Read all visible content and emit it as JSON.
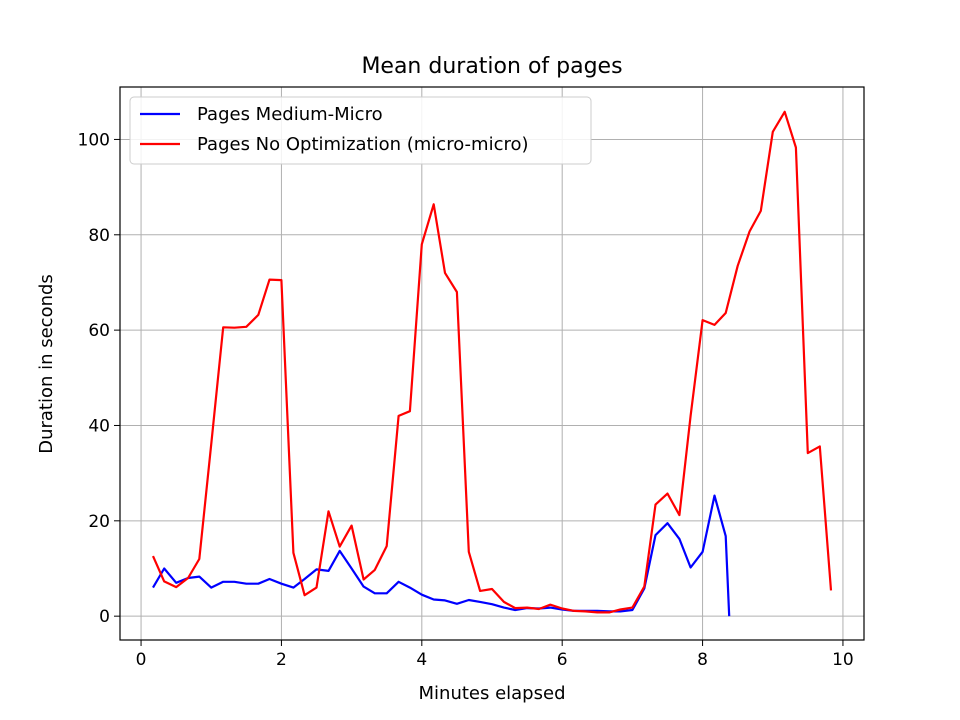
{
  "chart_data": {
    "type": "line",
    "title": "Mean duration of pages",
    "xlabel": "Minutes elapsed",
    "ylabel": "Duration in seconds",
    "xlim": [
      -0.3,
      10.3
    ],
    "ylim": [
      -5,
      111
    ],
    "xticks": [
      0,
      2,
      4,
      6,
      8,
      10
    ],
    "yticks": [
      0,
      20,
      40,
      60,
      80,
      100
    ],
    "grid": true,
    "legend_position": "top-left",
    "series": [
      {
        "name": "Pages Medium-Micro",
        "color": "#0000ff",
        "x": [
          0.17,
          0.33,
          0.5,
          0.67,
          0.83,
          1.0,
          1.17,
          1.33,
          1.5,
          1.67,
          1.83,
          2.0,
          2.17,
          2.33,
          2.5,
          2.67,
          2.83,
          3.0,
          3.17,
          3.33,
          3.5,
          3.67,
          3.83,
          4.0,
          4.17,
          4.33,
          4.5,
          4.67,
          4.83,
          5.0,
          5.17,
          5.33,
          5.5,
          5.67,
          5.83,
          6.0,
          6.17,
          6.33,
          6.5,
          6.67,
          6.83,
          7.0,
          7.17,
          7.33,
          7.5,
          7.67,
          7.83,
          8.0,
          8.17,
          8.33,
          8.38
        ],
        "y": [
          6,
          10,
          7,
          8,
          8.3,
          6,
          7.2,
          7.2,
          6.8,
          6.8,
          7.8,
          6.8,
          6,
          7.8,
          9.8,
          9.5,
          13.7,
          10,
          6.2,
          4.8,
          4.8,
          7.2,
          6,
          4.5,
          3.5,
          3.3,
          2.6,
          3.4,
          3,
          2.5,
          1.8,
          1.3,
          1.7,
          1.6,
          1.8,
          1.4,
          1.1,
          1.1,
          1.1,
          1,
          1,
          1.3,
          5.8,
          17,
          19.5,
          16.2,
          10.2,
          13.5,
          25.3,
          16.8,
          0
        ]
      },
      {
        "name": "Pages No Optimization (micro-micro)",
        "color": "#ff0000",
        "x": [
          0.17,
          0.33,
          0.5,
          0.67,
          0.83,
          1.0,
          1.17,
          1.33,
          1.5,
          1.67,
          1.83,
          2.0,
          2.17,
          2.33,
          2.5,
          2.67,
          2.83,
          3.0,
          3.17,
          3.33,
          3.5,
          3.67,
          3.83,
          4.0,
          4.17,
          4.33,
          4.5,
          4.67,
          4.83,
          5.0,
          5.17,
          5.33,
          5.5,
          5.67,
          5.83,
          6.0,
          6.17,
          6.33,
          6.5,
          6.67,
          6.83,
          7.0,
          7.17,
          7.33,
          7.5,
          7.67,
          7.83,
          8.0,
          8.17,
          8.33,
          8.5,
          8.67,
          8.83,
          9.0,
          9.17,
          9.33,
          9.5,
          9.67,
          9.83
        ],
        "y": [
          12.6,
          7.3,
          6.1,
          8,
          12,
          36,
          60.6,
          60.5,
          60.7,
          63.2,
          70.6,
          70.5,
          13.3,
          4.4,
          6,
          22,
          14.6,
          19,
          7.7,
          9.7,
          14.7,
          42,
          43,
          78,
          86.4,
          72,
          68,
          13.5,
          5.3,
          5.7,
          3,
          1.7,
          1.8,
          1.5,
          2.4,
          1.6,
          1.1,
          1,
          0.8,
          0.8,
          1.4,
          1.8,
          6.2,
          23.4,
          25.7,
          21.2,
          42,
          62.1,
          61.1,
          63.6,
          73.5,
          80.7,
          85,
          101.6,
          105.8,
          98.3,
          34.2,
          35.6,
          5.4
        ]
      }
    ]
  }
}
